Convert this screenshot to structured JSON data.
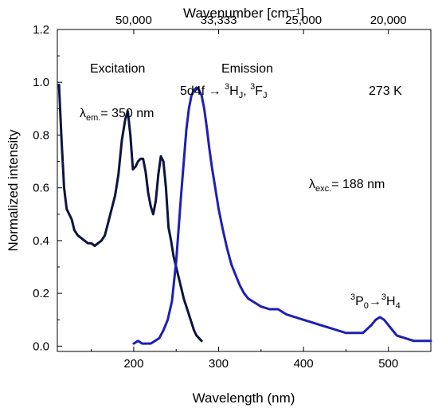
{
  "chart_data": {
    "type": "line",
    "xlabel": "Wavelength (nm)",
    "ylabel": "Normalized intensity",
    "top_axis_label": "Wavenumber [cm⁻¹]",
    "xlim": [
      110,
      550
    ],
    "ylim": [
      -0.02,
      1.2
    ],
    "x_ticks": [
      200,
      300,
      400,
      500
    ],
    "y_ticks": [
      "0.0",
      "0.2",
      "0.4",
      "0.6",
      "0.8",
      "1.0",
      "1.2"
    ],
    "top_ticks": [
      {
        "wavelength": 200,
        "label": "50,000"
      },
      {
        "wavelength": 300,
        "label": "33,333"
      },
      {
        "wavelength": 400,
        "label": "25,000"
      },
      {
        "wavelength": 500,
        "label": "20,000"
      }
    ],
    "grid": false,
    "series": [
      {
        "color": "#0d1440",
        "x": [
          112,
          115,
          118,
          121,
          124,
          127,
          130,
          134,
          138,
          142,
          146,
          150,
          154,
          158,
          162,
          166,
          170,
          174,
          178,
          182,
          186,
          190,
          193,
          196,
          199,
          202,
          205,
          208,
          211,
          214,
          217,
          220,
          223,
          226,
          229,
          232,
          235,
          238,
          241,
          244,
          247,
          250,
          253,
          256,
          259,
          262,
          265,
          268,
          271,
          274,
          277,
          280
        ],
        "y": [
          0.99,
          0.78,
          0.6,
          0.52,
          0.5,
          0.48,
          0.44,
          0.42,
          0.41,
          0.4,
          0.39,
          0.39,
          0.38,
          0.39,
          0.4,
          0.42,
          0.47,
          0.52,
          0.57,
          0.65,
          0.78,
          0.86,
          0.89,
          0.8,
          0.67,
          0.68,
          0.7,
          0.71,
          0.71,
          0.66,
          0.58,
          0.53,
          0.5,
          0.55,
          0.65,
          0.72,
          0.7,
          0.6,
          0.45,
          0.4,
          0.34,
          0.3,
          0.26,
          0.22,
          0.18,
          0.15,
          0.12,
          0.09,
          0.06,
          0.04,
          0.03,
          0.02
        ]
      },
      {
        "color": "#1f1fb4",
        "x": [
          200,
          205,
          210,
          215,
          220,
          225,
          230,
          235,
          240,
          245,
          250,
          253,
          256,
          259,
          262,
          265,
          268,
          271,
          274,
          277,
          280,
          283,
          286,
          289,
          292,
          296,
          300,
          305,
          310,
          315,
          320,
          325,
          330,
          335,
          340,
          345,
          350,
          360,
          370,
          380,
          390,
          400,
          410,
          420,
          430,
          440,
          450,
          460,
          470,
          480,
          485,
          490,
          495,
          500,
          505,
          510,
          520,
          530,
          540,
          550
        ],
        "y": [
          0.01,
          0.02,
          0.01,
          0.01,
          0.01,
          0.02,
          0.03,
          0.06,
          0.1,
          0.17,
          0.32,
          0.45,
          0.58,
          0.7,
          0.82,
          0.9,
          0.95,
          0.97,
          0.98,
          0.97,
          0.95,
          0.9,
          0.83,
          0.75,
          0.68,
          0.6,
          0.52,
          0.44,
          0.37,
          0.31,
          0.27,
          0.23,
          0.2,
          0.18,
          0.17,
          0.16,
          0.15,
          0.14,
          0.14,
          0.12,
          0.11,
          0.1,
          0.09,
          0.08,
          0.07,
          0.06,
          0.05,
          0.05,
          0.05,
          0.08,
          0.1,
          0.11,
          0.1,
          0.08,
          0.06,
          0.04,
          0.03,
          0.02,
          0.02,
          0.02
        ]
      }
    ],
    "annotations": {
      "excitation": "Excitation",
      "emission": "Emission",
      "lambda_em": {
        "symbol": "λ",
        "sub": "em.",
        "text": "= 350 nm"
      },
      "transition": {
        "prefix": "5d4f → ",
        "sup1": "3",
        "h": "H",
        "sub1": "J",
        "sep": ", ",
        "sup2": "3",
        "f": "F",
        "sub2": "J"
      },
      "temperature": "273 K",
      "lambda_exc": {
        "symbol": "λ",
        "sub": "exc.",
        "text": "= 188 nm"
      },
      "p_transition": {
        "sup1": "3",
        "p": "P",
        "sub1": "0",
        "arrow": "→",
        "sup2": "3",
        "h": "H",
        "sub2": "4"
      }
    }
  }
}
